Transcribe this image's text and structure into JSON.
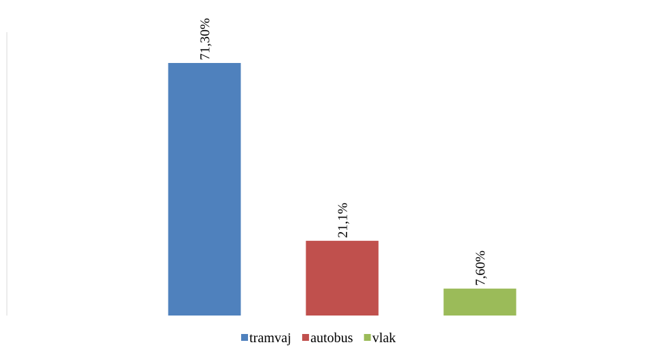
{
  "chart_data": {
    "type": "bar",
    "series": [
      {
        "name": "tramvaj",
        "color": "#4f81bd",
        "values": [
          71.3
        ],
        "value_labels": [
          "71,30%"
        ]
      },
      {
        "name": "autobus",
        "color": "#c0504d",
        "values": [
          21.1
        ],
        "value_labels": [
          "21,1%"
        ]
      },
      {
        "name": "vlak",
        "color": "#9bbb59",
        "values": [
          7.6
        ],
        "value_labels": [
          "7,60%"
        ]
      }
    ],
    "ylim": [
      0,
      80
    ]
  }
}
